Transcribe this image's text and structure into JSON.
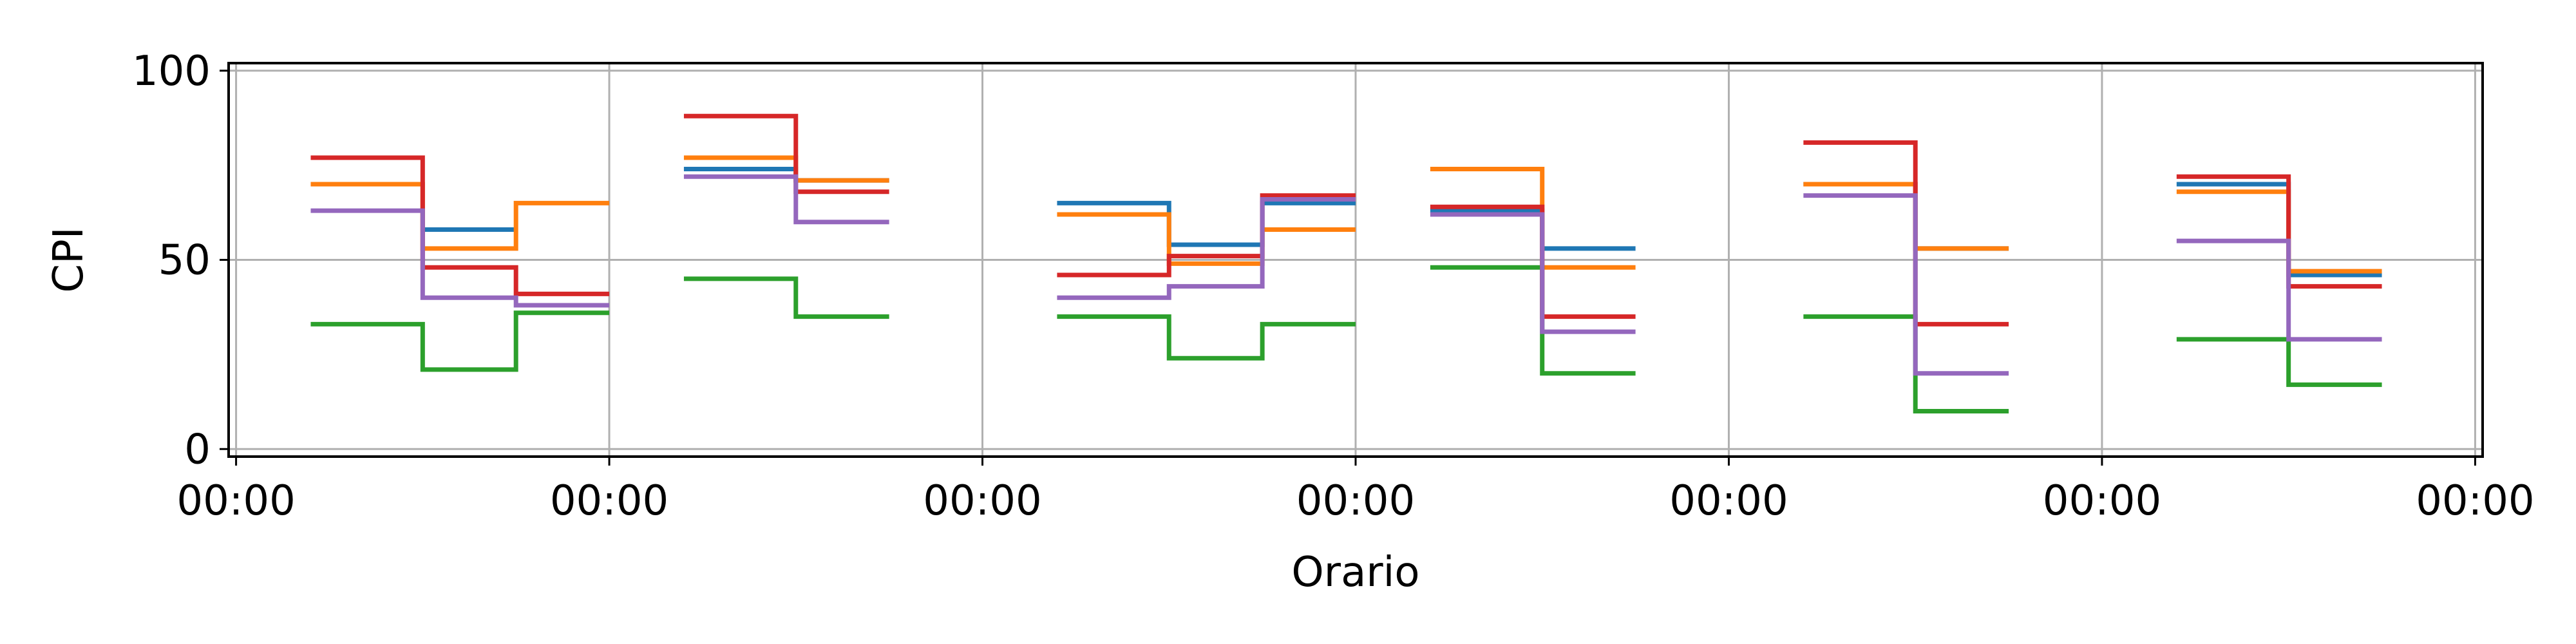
{
  "chart_data": {
    "type": "line",
    "xlabel": "Orario",
    "ylabel": "CPI",
    "ylim": [
      0,
      100
    ],
    "y_ticks": [
      0,
      50,
      100
    ],
    "x_tick_labels": [
      "00:00",
      "00:00",
      "00:00",
      "00:00",
      "00:00",
      "00:00",
      "00:00"
    ],
    "grid": true,
    "colors": [
      "#1f77b4",
      "#ff7f0e",
      "#2ca02c",
      "#d62728",
      "#9467bd"
    ],
    "groups": [
      {
        "x": [
          0.2,
          0.5,
          0.75,
          1.0
        ],
        "series": [
          {
            "values": [
              null,
              58,
              null
            ]
          },
          {
            "values": [
              70,
              53,
              65
            ]
          },
          {
            "values": [
              33,
              21,
              36
            ]
          },
          {
            "values": [
              77,
              48,
              41
            ]
          },
          {
            "values": [
              63,
              40,
              38
            ]
          }
        ]
      },
      {
        "x": [
          1.2,
          1.5,
          1.75
        ],
        "series": [
          {
            "values": [
              74,
              71
            ]
          },
          {
            "values": [
              77,
              71
            ]
          },
          {
            "values": [
              45,
              35
            ]
          },
          {
            "values": [
              88,
              68
            ]
          },
          {
            "values": [
              72,
              60
            ]
          }
        ]
      },
      {
        "x": [
          2.2,
          2.5,
          2.75,
          3.0
        ],
        "series": [
          {
            "values": [
              65,
              54,
              65
            ]
          },
          {
            "values": [
              62,
              49,
              58
            ]
          },
          {
            "values": [
              35,
              24,
              33
            ]
          },
          {
            "values": [
              46,
              51,
              67
            ]
          },
          {
            "values": [
              40,
              43,
              66
            ]
          }
        ]
      },
      {
        "x": [
          3.2,
          3.5,
          3.75
        ],
        "series": [
          {
            "values": [
              63,
              53
            ]
          },
          {
            "values": [
              74,
              48
            ]
          },
          {
            "values": [
              48,
              20
            ]
          },
          {
            "values": [
              64,
              35
            ]
          },
          {
            "values": [
              62,
              31
            ]
          }
        ]
      },
      {
        "x": [
          4.2,
          4.5,
          4.75
        ],
        "series": [
          {
            "values": [
              70,
              53
            ]
          },
          {
            "values": [
              70,
              53
            ]
          },
          {
            "values": [
              35,
              10
            ]
          },
          {
            "values": [
              81,
              33
            ]
          },
          {
            "values": [
              67,
              20
            ]
          }
        ]
      },
      {
        "x": [
          5.2,
          5.5,
          5.75
        ],
        "series": [
          {
            "values": [
              70,
              46
            ]
          },
          {
            "values": [
              68,
              47
            ]
          },
          {
            "values": [
              29,
              17
            ]
          },
          {
            "values": [
              72,
              43
            ]
          },
          {
            "values": [
              55,
              29
            ]
          }
        ]
      }
    ]
  }
}
